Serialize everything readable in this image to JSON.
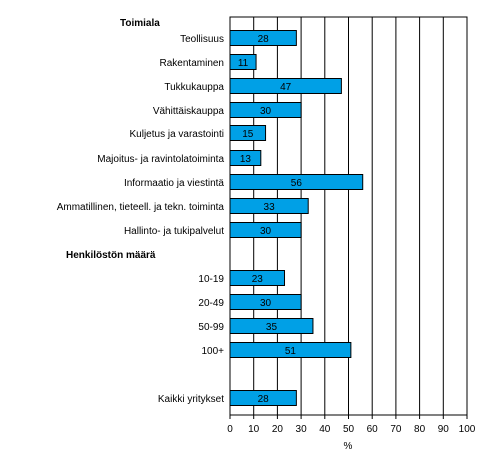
{
  "chart_data": {
    "type": "bar",
    "orientation": "horizontal",
    "categories": [
      "Teollisuus",
      "Rakentaminen",
      "Tukkukauppa",
      "Vähittäiskauppa",
      "Kuljetus ja varastointi",
      "Majoitus- ja ravintolatoiminta",
      "Informaatio ja viestintä",
      "Ammatillinen, tieteell. ja tekn. toiminta",
      "Hallinto- ja tukipalvelut",
      "10-19",
      "20-49",
      "50-99",
      "100+",
      "Kaikki yritykset"
    ],
    "values": [
      28,
      11,
      47,
      30,
      15,
      13,
      56,
      33,
      30,
      23,
      30,
      35,
      51,
      28
    ],
    "group_headings": [
      "Toimiala",
      "Henkilöstön määrä"
    ],
    "xlabel": "%",
    "ylabel": "",
    "xlim": [
      0,
      100
    ],
    "xticks": [
      0,
      10,
      20,
      30,
      40,
      50,
      60,
      70,
      80,
      90,
      100
    ],
    "grid": true,
    "legend": "none",
    "data_labels": true,
    "bar_color": "#00a0e6",
    "bar_edge_color": "#000000"
  }
}
